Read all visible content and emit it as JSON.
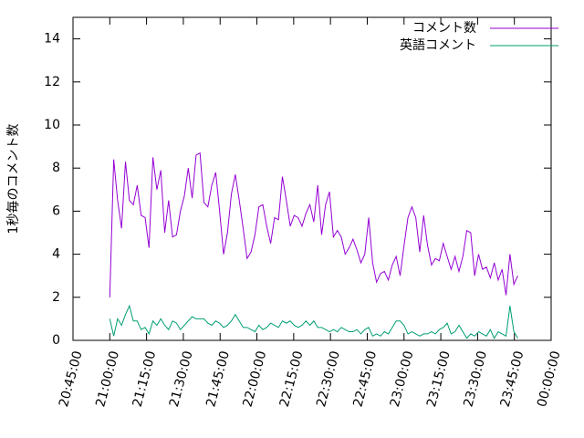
{
  "chart_data": {
    "type": "line",
    "y_label": "1秒毎のコメント数",
    "x": [
      1260,
      1261.6,
      1263.2,
      1264.8,
      1266.4,
      1268,
      1269.6,
      1271.2,
      1272.8,
      1274.4,
      1276,
      1277.6,
      1279.2,
      1280.8,
      1282.4,
      1284,
      1285.6,
      1287.2,
      1288.8,
      1290.4,
      1292,
      1293.6,
      1295.2,
      1296.8,
      1298.4,
      1300,
      1301.6,
      1303.2,
      1304.8,
      1306.4,
      1308,
      1309.6,
      1311.2,
      1312.8,
      1314.4,
      1316,
      1317.6,
      1319.2,
      1320.8,
      1322.4,
      1324,
      1325.6,
      1327.2,
      1328.8,
      1330.4,
      1332,
      1333.6,
      1335.2,
      1336.8,
      1338.4,
      1340,
      1341.6,
      1343.2,
      1344.8,
      1346.4,
      1348,
      1349.6,
      1351.2,
      1352.8,
      1354.4,
      1356,
      1357.6,
      1359.2,
      1360.8,
      1362.4,
      1364,
      1365.6,
      1367.2,
      1368.8,
      1370.4,
      1372,
      1373.6,
      1375.2,
      1376.8,
      1378.4,
      1380,
      1381.6,
      1383.2,
      1384.8,
      1386.4,
      1388,
      1389.6,
      1391.2,
      1392.8,
      1394.4,
      1396,
      1397.6,
      1399.2,
      1400.8,
      1402.4,
      1404,
      1405.6,
      1407.2,
      1408.8,
      1410.4,
      1412,
      1413.6,
      1415.2,
      1416.8,
      1418.4,
      1420,
      1421.6,
      1423.2,
      1424.8,
      1426.4
    ],
    "series": [
      {
        "name": "コメント数",
        "color": "#9400d3",
        "values": [
          2,
          8.4,
          6.5,
          5.2,
          8.3,
          6.5,
          6.3,
          7.2,
          5.8,
          5.7,
          4.3,
          8.5,
          7,
          7.9,
          5,
          6.5,
          4.8,
          4.9,
          6,
          6.7,
          8,
          6.6,
          8.6,
          8.7,
          6.4,
          6.2,
          7.2,
          7.8,
          6,
          4,
          5,
          6.8,
          7.7,
          6.5,
          5.2,
          3.8,
          4.1,
          4.9,
          6.2,
          6.3,
          5.3,
          4.5,
          5.7,
          5.6,
          7.6,
          6.5,
          5.3,
          5.8,
          5.7,
          5.3,
          5.9,
          6.3,
          5.5,
          7.2,
          4.9,
          6.3,
          6.9,
          4.8,
          5.1,
          4.8,
          4,
          4.3,
          4.7,
          4.2,
          3.6,
          4,
          5.7,
          3.6,
          2.7,
          3.1,
          3.2,
          2.8,
          3.5,
          3.9,
          3,
          4.4,
          5.7,
          6.2,
          5.7,
          4.1,
          5.8,
          4.4,
          3.5,
          3.8,
          3.7,
          4.5,
          3.9,
          3.3,
          3.9,
          3.2,
          3.9,
          5.1,
          5,
          3,
          4,
          3.3,
          3.4,
          2.9,
          3.6,
          2.8,
          3.3,
          2.1,
          4,
          2.6,
          3
        ]
      },
      {
        "name": "英語コメント",
        "color": "#009e73",
        "values": [
          1,
          0.2,
          1,
          0.7,
          1.2,
          1.6,
          0.9,
          0.9,
          0.5,
          0.6,
          0.3,
          0.9,
          0.7,
          1,
          0.7,
          0.5,
          0.9,
          0.8,
          0.5,
          0.7,
          0.9,
          1.1,
          1,
          1,
          1,
          0.8,
          0.7,
          0.9,
          0.8,
          0.6,
          0.7,
          0.9,
          1.2,
          0.9,
          0.6,
          0.6,
          0.5,
          0.4,
          0.7,
          0.5,
          0.6,
          0.8,
          0.7,
          0.6,
          0.9,
          0.8,
          0.9,
          0.7,
          0.6,
          0.7,
          0.9,
          0.7,
          0.9,
          0.6,
          0.6,
          0.5,
          0.4,
          0.5,
          0.4,
          0.6,
          0.5,
          0.4,
          0.4,
          0.5,
          0.3,
          0.5,
          0.6,
          0.2,
          0.3,
          0.2,
          0.4,
          0.3,
          0.6,
          0.9,
          0.9,
          0.7,
          0.3,
          0.4,
          0.3,
          0.2,
          0.3,
          0.3,
          0.4,
          0.3,
          0.5,
          0.6,
          0.8,
          0.3,
          0.4,
          0.7,
          0.4,
          0.1,
          0.3,
          0.2,
          0.4,
          0.3,
          0.2,
          0.5,
          0.1,
          0.4,
          0.3,
          0.2,
          1.6,
          0.4,
          0.1
        ]
      }
    ],
    "xlim": [
      1245,
      1440
    ],
    "xticks": [
      {
        "value": 1245,
        "label": "20:45:00"
      },
      {
        "value": 1260,
        "label": "21:00:00"
      },
      {
        "value": 1275,
        "label": "21:15:00"
      },
      {
        "value": 1290,
        "label": "21:30:00"
      },
      {
        "value": 1305,
        "label": "21:45:00"
      },
      {
        "value": 1320,
        "label": "22:00:00"
      },
      {
        "value": 1335,
        "label": "22:15:00"
      },
      {
        "value": 1350,
        "label": "22:30:00"
      },
      {
        "value": 1365,
        "label": "22:45:00"
      },
      {
        "value": 1380,
        "label": "23:00:00"
      },
      {
        "value": 1395,
        "label": "23:15:00"
      },
      {
        "value": 1410,
        "label": "23:30:00"
      },
      {
        "value": 1425,
        "label": "23:45:00"
      },
      {
        "value": 1440,
        "label": "00:00:00"
      }
    ],
    "ylim": [
      0,
      15
    ],
    "yticks": [
      0,
      2,
      4,
      6,
      8,
      10,
      12,
      14
    ],
    "legend": "top-right"
  }
}
